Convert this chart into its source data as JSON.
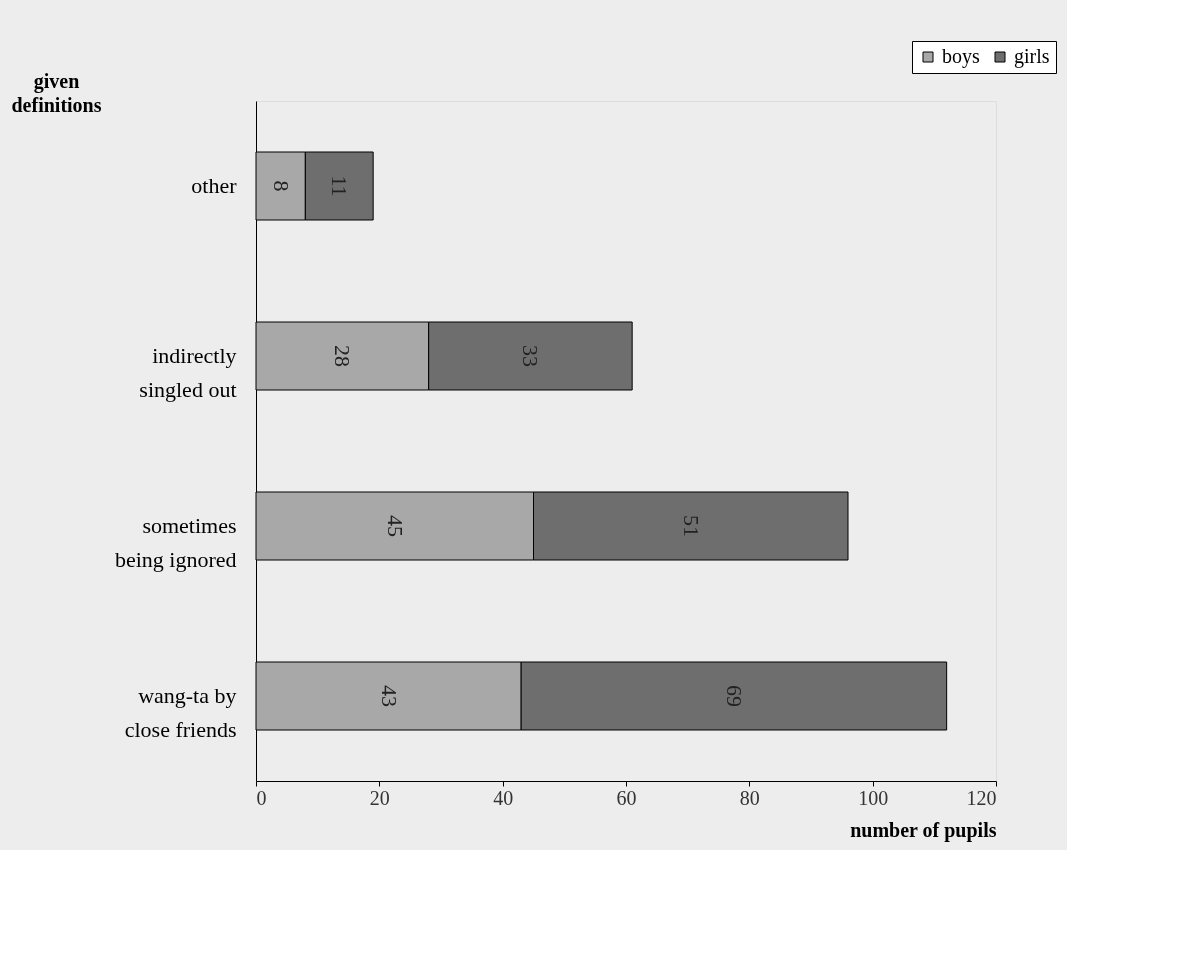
{
  "chart_data": {
    "type": "bar",
    "orientation": "horizontal",
    "stacked": true,
    "categories": [
      "other",
      "indirectly\nsingled out",
      "sometimes\nbeing ignored",
      "wang-ta by\nclose friends"
    ],
    "series": [
      {
        "name": "boys",
        "color": "#a8a8a8",
        "values": [
          8,
          28,
          45,
          43
        ]
      },
      {
        "name": "girls",
        "color": "#6e6e6e",
        "values": [
          11,
          33,
          51,
          69
        ]
      }
    ],
    "xlim": [
      0,
      120
    ],
    "xticks": [
      0,
      20,
      40,
      60,
      80,
      100,
      120
    ],
    "xlabel": "number of pupils",
    "ylabel": "given\ndefinitions",
    "data_labels": true,
    "legend": "top right",
    "grid": false
  }
}
